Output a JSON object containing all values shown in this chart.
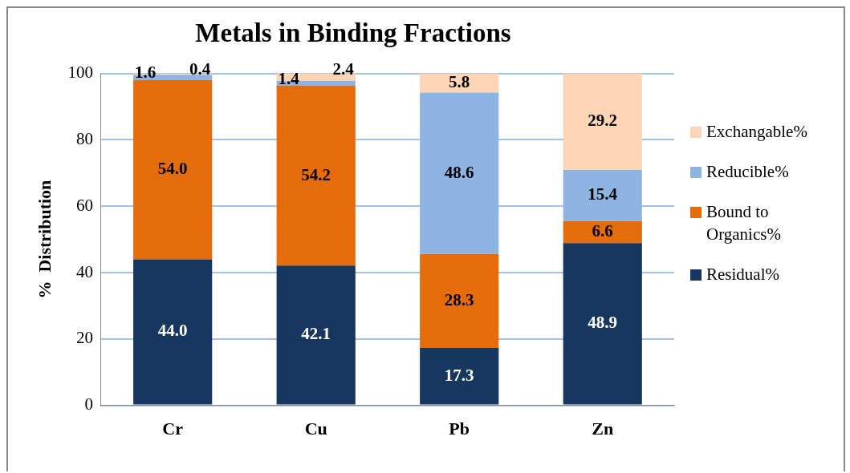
{
  "chart_data": {
    "type": "bar",
    "title": "Metals in Binding Fractions",
    "ylabel": "%  Distribution",
    "categories": [
      "Cr",
      "Cu",
      "Pb",
      "Zn"
    ],
    "series": [
      {
        "name": "Residual%",
        "color": "#17375e",
        "values": [
          44.0,
          42.1,
          17.3,
          48.9
        ],
        "value_labels": [
          "44.0",
          "42.1",
          "17.3",
          "48.9"
        ]
      },
      {
        "name": "Bound to Organics%",
        "color": "#e46c0a",
        "values": [
          54.0,
          54.2,
          28.3,
          6.6
        ],
        "value_labels": [
          "54.0",
          "54.2",
          "28.3",
          "6.6"
        ]
      },
      {
        "name": "Reducible%",
        "color": "#8eb4e3",
        "values": [
          1.6,
          1.4,
          48.6,
          15.4
        ],
        "value_labels": [
          "1.6",
          "1.4",
          "48.6",
          "15.4"
        ]
      },
      {
        "name": "Exchangable%",
        "color": "#fcd5b5",
        "values": [
          0.4,
          2.4,
          5.8,
          29.2
        ],
        "value_labels": [
          "0.4",
          "2.4",
          "5.8",
          "29.2"
        ]
      }
    ],
    "stacked": true,
    "ylim": [
      0,
      100
    ],
    "yticks": [
      0,
      20,
      40,
      60,
      80,
      100
    ],
    "grid": "y",
    "legend": "right"
  }
}
